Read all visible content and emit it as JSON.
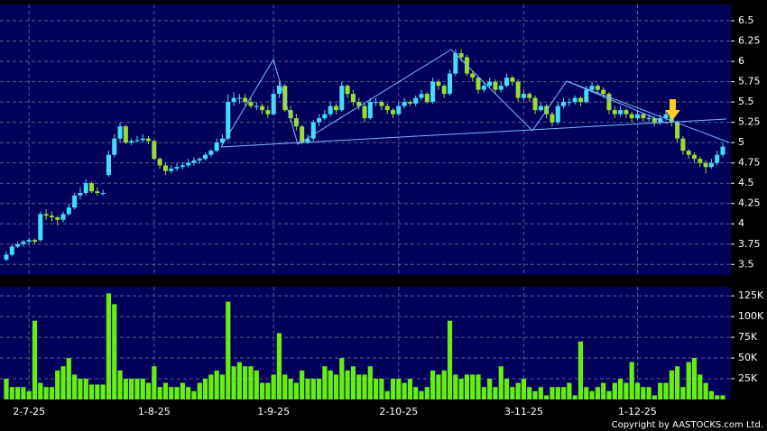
{
  "chart_data": [
    {
      "type": "candlestick",
      "up_color": "#44ddff",
      "down_color": "#99dd33",
      "ylim": [
        3.37,
        6.7
      ],
      "yticks": [
        3.5,
        3.75,
        4,
        4.25,
        4.5,
        4.75,
        5,
        5.25,
        5.5,
        5.75,
        6,
        6.25,
        6.5
      ],
      "grid": true,
      "values": [
        [
          3.56,
          3.66,
          3.54,
          3.62
        ],
        [
          3.62,
          3.75,
          3.6,
          3.72
        ],
        [
          3.72,
          3.78,
          3.7,
          3.75
        ],
        [
          3.75,
          3.8,
          3.72,
          3.78
        ],
        [
          3.78,
          3.83,
          3.75,
          3.8
        ],
        [
          3.8,
          3.82,
          3.75,
          3.78
        ],
        [
          3.8,
          4.15,
          3.78,
          4.12
        ],
        [
          4.12,
          4.18,
          4.05,
          4.1
        ],
        [
          4.1,
          4.15,
          4.03,
          4.08
        ],
        [
          4.08,
          4.1,
          3.98,
          4.05
        ],
        [
          4.05,
          4.15,
          4.02,
          4.12
        ],
        [
          4.12,
          4.25,
          4.1,
          4.2
        ],
        [
          4.2,
          4.38,
          4.18,
          4.35
        ],
        [
          4.35,
          4.45,
          4.3,
          4.38
        ],
        [
          4.38,
          4.55,
          4.35,
          4.5
        ],
        [
          4.5,
          4.52,
          4.38,
          4.4
        ],
        [
          4.4,
          4.45,
          4.35,
          4.38
        ],
        [
          4.38,
          4.42,
          4.35,
          4.38
        ],
        [
          4.6,
          4.9,
          4.58,
          4.85
        ],
        [
          4.85,
          5.1,
          4.82,
          5.05
        ],
        [
          5.05,
          5.25,
          5.0,
          5.2
        ],
        [
          5.2,
          5.22,
          4.98,
          5.0
        ],
        [
          5.0,
          5.05,
          4.97,
          5.02
        ],
        [
          5.02,
          5.08,
          5.0,
          5.03
        ],
        [
          5.03,
          5.1,
          5.0,
          5.05
        ],
        [
          5.05,
          5.08,
          4.98,
          5.02
        ],
        [
          5.02,
          5.03,
          4.78,
          4.8
        ],
        [
          4.8,
          4.82,
          4.68,
          4.72
        ],
        [
          4.72,
          4.75,
          4.6,
          4.65
        ],
        [
          4.65,
          4.72,
          4.62,
          4.68
        ],
        [
          4.68,
          4.75,
          4.65,
          4.7
        ],
        [
          4.7,
          4.76,
          4.67,
          4.72
        ],
        [
          4.72,
          4.8,
          4.7,
          4.75
        ],
        [
          4.75,
          4.82,
          4.72,
          4.78
        ],
        [
          4.78,
          4.82,
          4.74,
          4.8
        ],
        [
          4.8,
          4.88,
          4.78,
          4.85
        ],
        [
          4.85,
          4.92,
          4.82,
          4.9
        ],
        [
          4.9,
          5.05,
          4.88,
          5.0
        ],
        [
          5.0,
          5.1,
          4.97,
          5.05
        ],
        [
          5.05,
          5.6,
          5.02,
          5.5
        ],
        [
          5.5,
          5.62,
          5.45,
          5.55
        ],
        [
          5.55,
          5.6,
          5.48,
          5.55
        ],
        [
          5.55,
          5.6,
          5.45,
          5.5
        ],
        [
          5.5,
          5.55,
          5.42,
          5.45
        ],
        [
          5.45,
          5.5,
          5.4,
          5.45
        ],
        [
          5.45,
          5.48,
          5.35,
          5.4
        ],
        [
          5.4,
          5.45,
          5.3,
          5.35
        ],
        [
          5.35,
          5.65,
          5.33,
          5.6
        ],
        [
          5.6,
          5.75,
          5.55,
          5.7
        ],
        [
          5.7,
          5.72,
          5.38,
          5.4
        ],
        [
          5.4,
          5.45,
          5.25,
          5.3
        ],
        [
          5.3,
          5.35,
          5.15,
          5.2
        ],
        [
          5.2,
          5.22,
          4.98,
          5.0
        ],
        [
          5.0,
          5.1,
          4.98,
          5.05
        ],
        [
          5.05,
          5.28,
          5.02,
          5.25
        ],
        [
          5.25,
          5.35,
          5.2,
          5.3
        ],
        [
          5.3,
          5.4,
          5.28,
          5.35
        ],
        [
          5.35,
          5.5,
          5.32,
          5.45
        ],
        [
          5.45,
          5.48,
          5.35,
          5.4
        ],
        [
          5.4,
          5.75,
          5.38,
          5.7
        ],
        [
          5.7,
          5.72,
          5.55,
          5.6
        ],
        [
          5.6,
          5.65,
          5.45,
          5.5
        ],
        [
          5.5,
          5.55,
          5.4,
          5.45
        ],
        [
          5.45,
          5.48,
          5.25,
          5.3
        ],
        [
          5.3,
          5.55,
          5.28,
          5.5
        ],
        [
          5.5,
          5.55,
          5.45,
          5.5
        ],
        [
          5.5,
          5.52,
          5.4,
          5.45
        ],
        [
          5.45,
          5.48,
          5.35,
          5.4
        ],
        [
          5.4,
          5.42,
          5.3,
          5.35
        ],
        [
          5.35,
          5.5,
          5.33,
          5.45
        ],
        [
          5.45,
          5.55,
          5.42,
          5.5
        ],
        [
          5.5,
          5.52,
          5.45,
          5.48
        ],
        [
          5.48,
          5.58,
          5.45,
          5.55
        ],
        [
          5.55,
          5.65,
          5.52,
          5.6
        ],
        [
          5.6,
          5.62,
          5.48,
          5.5
        ],
        [
          5.5,
          5.8,
          5.48,
          5.75
        ],
        [
          5.75,
          5.78,
          5.65,
          5.7
        ],
        [
          5.7,
          5.72,
          5.55,
          5.6
        ],
        [
          5.6,
          5.9,
          5.58,
          5.85
        ],
        [
          5.85,
          6.15,
          5.82,
          6.1
        ],
        [
          6.1,
          6.15,
          6.0,
          6.05
        ],
        [
          6.05,
          6.08,
          5.82,
          5.85
        ],
        [
          5.85,
          5.88,
          5.75,
          5.8
        ],
        [
          5.8,
          5.82,
          5.6,
          5.65
        ],
        [
          5.65,
          5.75,
          5.62,
          5.7
        ],
        [
          5.7,
          5.8,
          5.68,
          5.75
        ],
        [
          5.75,
          5.78,
          5.6,
          5.65
        ],
        [
          5.65,
          5.75,
          5.62,
          5.7
        ],
        [
          5.7,
          5.85,
          5.68,
          5.8
        ],
        [
          5.8,
          5.82,
          5.7,
          5.75
        ],
        [
          5.75,
          5.78,
          5.5,
          5.55
        ],
        [
          5.55,
          5.65,
          5.52,
          5.6
        ],
        [
          5.6,
          5.62,
          5.5,
          5.55
        ],
        [
          5.55,
          5.58,
          5.35,
          5.4
        ],
        [
          5.4,
          5.5,
          5.38,
          5.45
        ],
        [
          5.45,
          5.48,
          5.3,
          5.35
        ],
        [
          5.35,
          5.38,
          5.2,
          5.25
        ],
        [
          5.25,
          5.5,
          5.22,
          5.45
        ],
        [
          5.45,
          5.55,
          5.42,
          5.5
        ],
        [
          5.5,
          5.55,
          5.45,
          5.5
        ],
        [
          5.5,
          5.58,
          5.47,
          5.55
        ],
        [
          5.55,
          5.57,
          5.45,
          5.5
        ],
        [
          5.5,
          5.7,
          5.48,
          5.65
        ],
        [
          5.65,
          5.75,
          5.62,
          5.7
        ],
        [
          5.7,
          5.72,
          5.6,
          5.65
        ],
        [
          5.65,
          5.68,
          5.55,
          5.6
        ],
        [
          5.6,
          5.62,
          5.35,
          5.4
        ],
        [
          5.4,
          5.45,
          5.3,
          5.35
        ],
        [
          5.35,
          5.45,
          5.32,
          5.4
        ],
        [
          5.4,
          5.42,
          5.3,
          5.35
        ],
        [
          5.35,
          5.38,
          5.25,
          5.3
        ],
        [
          5.3,
          5.4,
          5.28,
          5.35
        ],
        [
          5.35,
          5.37,
          5.25,
          5.3
        ],
        [
          5.3,
          5.35,
          5.25,
          5.3
        ],
        [
          5.3,
          5.32,
          5.2,
          5.25
        ],
        [
          5.25,
          5.35,
          5.22,
          5.3
        ],
        [
          5.3,
          5.4,
          5.27,
          5.35
        ],
        [
          5.35,
          5.37,
          5.2,
          5.25
        ],
        [
          5.25,
          5.27,
          5.0,
          5.05
        ],
        [
          5.05,
          5.08,
          4.85,
          4.9
        ],
        [
          4.9,
          4.92,
          4.8,
          4.85
        ],
        [
          4.85,
          4.88,
          4.75,
          4.8
        ],
        [
          4.8,
          4.83,
          4.7,
          4.75
        ],
        [
          4.75,
          4.78,
          4.62,
          4.7
        ],
        [
          4.7,
          4.8,
          4.68,
          4.75
        ],
        [
          4.75,
          4.9,
          4.72,
          4.85
        ],
        [
          4.85,
          5.0,
          4.82,
          4.95
        ]
      ]
    },
    {
      "type": "bar",
      "color": "#66ee11",
      "ylim": [
        0,
        136000
      ],
      "yticks": [
        {
          "value": 25000,
          "label": "25K"
        },
        {
          "value": 50000,
          "label": "50K"
        },
        {
          "value": 75000,
          "label": "75K"
        },
        {
          "value": 100000,
          "label": "100K"
        },
        {
          "value": 125000,
          "label": "125K"
        }
      ],
      "grid": true,
      "categories": [
        null,
        null,
        null,
        null,
        "2-7-25",
        null,
        null,
        null,
        null,
        null,
        null,
        null,
        null,
        null,
        null,
        null,
        null,
        null,
        null,
        null,
        null,
        null,
        null,
        null,
        null,
        null,
        "1-8-25",
        null,
        null,
        null,
        null,
        null,
        null,
        null,
        null,
        null,
        null,
        null,
        null,
        null,
        null,
        null,
        null,
        null,
        null,
        null,
        null,
        "1-9-25",
        null,
        null,
        null,
        null,
        null,
        null,
        null,
        null,
        null,
        null,
        null,
        null,
        null,
        null,
        null,
        null,
        null,
        null,
        null,
        null,
        null,
        "2-10-25",
        null,
        null,
        null,
        null,
        null,
        null,
        null,
        null,
        null,
        null,
        null,
        null,
        null,
        null,
        null,
        null,
        null,
        null,
        null,
        null,
        null,
        "3-11-25",
        null,
        null,
        null,
        null,
        null,
        null,
        null,
        null,
        null,
        null,
        null,
        null,
        null,
        null,
        null,
        null,
        null,
        null,
        null,
        "1-12-25",
        null,
        null,
        null,
        null,
        null,
        null,
        null,
        null,
        null,
        null,
        null,
        null,
        null,
        null,
        null
      ],
      "values": [
        25000,
        15000,
        15000,
        15000,
        10000,
        95000,
        20000,
        15000,
        15000,
        35000,
        40000,
        50000,
        30000,
        25000,
        25000,
        18000,
        18000,
        18000,
        128000,
        115000,
        35000,
        25000,
        25000,
        25000,
        25000,
        20000,
        40000,
        15000,
        20000,
        15000,
        15000,
        20000,
        15000,
        10000,
        20000,
        25000,
        30000,
        35000,
        30000,
        118000,
        40000,
        45000,
        40000,
        40000,
        35000,
        20000,
        20000,
        30000,
        80000,
        30000,
        25000,
        20000,
        35000,
        25000,
        25000,
        25000,
        40000,
        35000,
        30000,
        50000,
        35000,
        40000,
        30000,
        30000,
        40000,
        25000,
        25000,
        10000,
        25000,
        25000,
        20000,
        25000,
        15000,
        10000,
        15000,
        35000,
        30000,
        35000,
        95000,
        30000,
        25000,
        30000,
        30000,
        30000,
        15000,
        25000,
        15000,
        40000,
        25000,
        15000,
        20000,
        25000,
        15000,
        10000,
        15000,
        5000,
        15000,
        15000,
        15000,
        20000,
        5000,
        70000,
        15000,
        10000,
        15000,
        20000,
        10000,
        20000,
        25000,
        20000,
        45000,
        20000,
        15000,
        15000,
        5000,
        20000,
        20000,
        35000,
        40000,
        15000,
        45000,
        50000,
        30000,
        20000,
        10000,
        5000,
        5000
      ]
    }
  ],
  "copyright": "Copyright by AASTOCKS.com Ltd."
}
